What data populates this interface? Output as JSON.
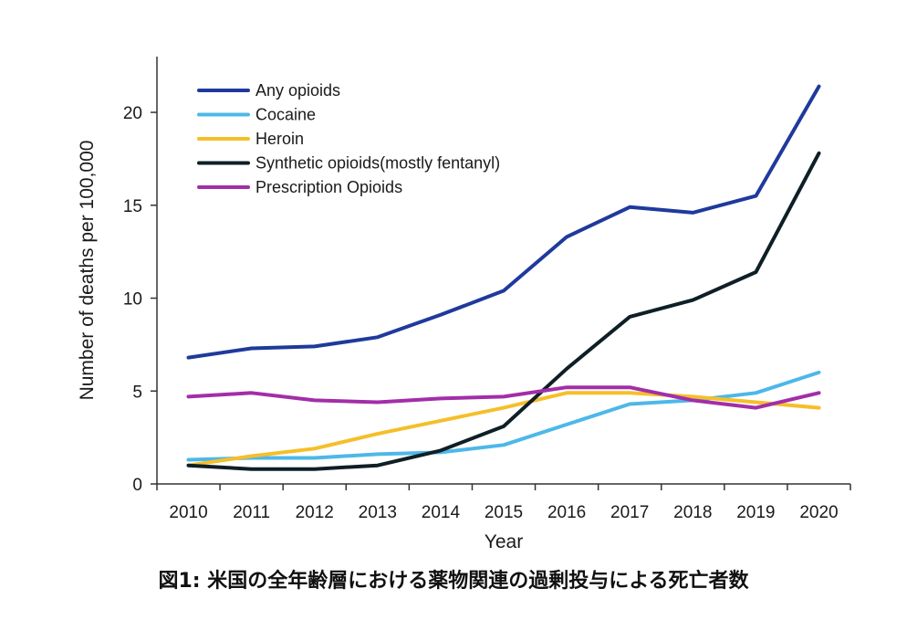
{
  "caption": "図1: 米国の全年齢層における薬物関連の過剰投与による死亡者数",
  "chart_data": {
    "type": "line",
    "x": [
      2010,
      2011,
      2012,
      2013,
      2014,
      2015,
      2016,
      2017,
      2018,
      2019,
      2020
    ],
    "xlabel": "Year",
    "ylabel": "Number of deaths per 100,000",
    "ylim": [
      0,
      23
    ],
    "yticks": [
      0,
      5,
      10,
      15,
      20
    ],
    "grid": false,
    "legend_position": "top-left",
    "series": [
      {
        "name": "Any opioids",
        "color": "#1f3a9c",
        "values": [
          6.8,
          7.3,
          7.4,
          7.9,
          9.1,
          10.4,
          13.3,
          14.9,
          14.6,
          15.5,
          21.4
        ]
      },
      {
        "name": "Cocaine",
        "color": "#4db8e8",
        "values": [
          1.3,
          1.4,
          1.4,
          1.6,
          1.7,
          2.1,
          3.2,
          4.3,
          4.5,
          4.9,
          6.0
        ]
      },
      {
        "name": "Heroin",
        "color": "#f5bf2a",
        "values": [
          1.0,
          1.5,
          1.9,
          2.7,
          3.4,
          4.1,
          4.9,
          4.9,
          4.7,
          4.4,
          4.1
        ]
      },
      {
        "name": "Synthetic opioids(mostly fentanyl)",
        "color": "#0e1f26",
        "values": [
          1.0,
          0.8,
          0.8,
          1.0,
          1.8,
          3.1,
          6.2,
          9.0,
          9.9,
          11.4,
          17.8
        ]
      },
      {
        "name": "Prescription Opioids",
        "color": "#a22ea8",
        "values": [
          4.7,
          4.9,
          4.5,
          4.4,
          4.6,
          4.7,
          5.2,
          5.2,
          4.5,
          4.1,
          4.9
        ]
      }
    ]
  }
}
